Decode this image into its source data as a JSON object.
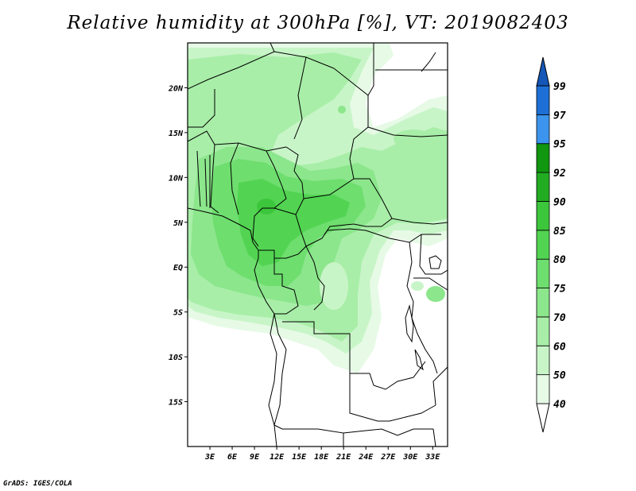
{
  "title": "Relative humidity at 300hPa [%], VT: 2019082403",
  "credit": "GrADS: IGES/COLA",
  "map": {
    "lat_range": [
      -20,
      25
    ],
    "lon_range": [
      0,
      35
    ],
    "lat_ticks": [
      {
        "value": 20,
        "label": "20N"
      },
      {
        "value": 15,
        "label": "15N"
      },
      {
        "value": 10,
        "label": "10N"
      },
      {
        "value": 5,
        "label": "5N"
      },
      {
        "value": 0,
        "label": "EQ"
      },
      {
        "value": -5,
        "label": "5S"
      },
      {
        "value": -10,
        "label": "10S"
      },
      {
        "value": -15,
        "label": "15S"
      }
    ],
    "lon_ticks": [
      {
        "value": 3,
        "label": "3E"
      },
      {
        "value": 6,
        "label": "6E"
      },
      {
        "value": 9,
        "label": "9E"
      },
      {
        "value": 12,
        "label": "12E"
      },
      {
        "value": 15,
        "label": "15E"
      },
      {
        "value": 18,
        "label": "18E"
      },
      {
        "value": 21,
        "label": "21E"
      },
      {
        "value": 24,
        "label": "24E"
      },
      {
        "value": 27,
        "label": "27E"
      },
      {
        "value": 30,
        "label": "30E"
      },
      {
        "value": 33,
        "label": "33E"
      }
    ]
  },
  "colorbar": {
    "levels": [
      {
        "label": "40",
        "color": "#e6fae6"
      },
      {
        "label": "50",
        "color": "#c8f5c8"
      },
      {
        "label": "60",
        "color": "#a8eea8"
      },
      {
        "label": "70",
        "color": "#8ce68c"
      },
      {
        "label": "75",
        "color": "#6ede6e"
      },
      {
        "label": "80",
        "color": "#52d452"
      },
      {
        "label": "85",
        "color": "#3cc63c"
      },
      {
        "label": "90",
        "color": "#22ac22"
      },
      {
        "label": "92",
        "color": "#10960f"
      },
      {
        "label": "95",
        "color": "#3d94ec"
      },
      {
        "label": "97",
        "color": "#1e6fd6"
      },
      {
        "label": "99",
        "color": "#1557b8"
      }
    ]
  }
}
